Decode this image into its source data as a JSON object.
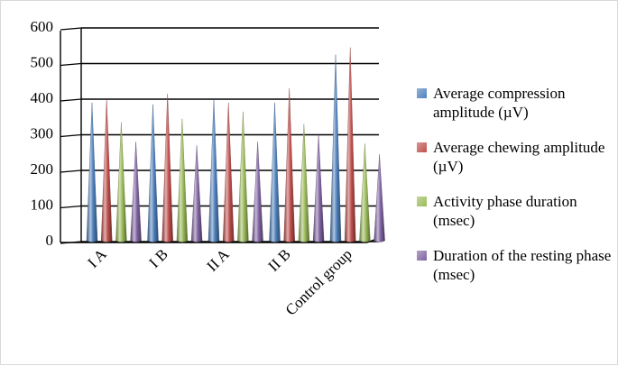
{
  "chart_data": {
    "type": "bar",
    "style": "3d-cone",
    "categories": [
      "I A",
      "I B",
      "II A",
      "II B",
      "Control group"
    ],
    "series": [
      {
        "name": "Average compression amplitude (µV)",
        "color": "#4f81bd",
        "values": [
          385,
          380,
          395,
          385,
          520
        ]
      },
      {
        "name": "Average chewing amplitude (µV)",
        "color": "#c0504d",
        "values": [
          395,
          410,
          385,
          425,
          540
        ]
      },
      {
        "name": "Activity phase duration (msec)",
        "color": "#9bbb59",
        "values": [
          330,
          340,
          360,
          325,
          270
        ]
      },
      {
        "name": "Duration of the resting phase (msec)",
        "color": "#8064a2",
        "values": [
          275,
          265,
          275,
          295,
          240
        ]
      }
    ],
    "yticks": [
      0,
      100,
      200,
      300,
      400,
      500,
      600
    ],
    "ylim": [
      0,
      600
    ],
    "grid": true,
    "legend_position": "right"
  }
}
